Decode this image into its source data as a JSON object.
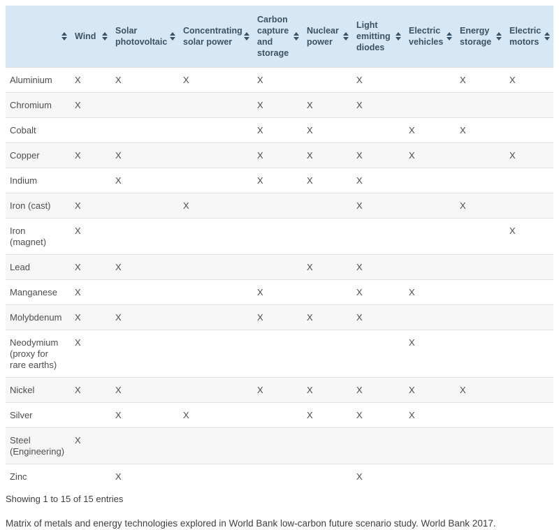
{
  "table": {
    "columns": [
      {
        "id": "metal",
        "label": "",
        "sortable": true
      },
      {
        "id": "wind",
        "label": "Wind",
        "sortable": true
      },
      {
        "id": "solar-photovoltaic",
        "label": "Solar photovoltaic",
        "sortable": true
      },
      {
        "id": "concentrating-solar-power",
        "label": "Concentrating solar power",
        "sortable": true
      },
      {
        "id": "carbon-capture-and-storage",
        "label": "Carbon capture and storage",
        "sortable": true
      },
      {
        "id": "nuclear-power",
        "label": "Nuclear power",
        "sortable": true
      },
      {
        "id": "light-emitting-diodes",
        "label": "Light emitting diodes",
        "sortable": true
      },
      {
        "id": "electric-vehicles",
        "label": "Electric vehicles",
        "sortable": true
      },
      {
        "id": "energy-storage",
        "label": "Energy storage",
        "sortable": true
      },
      {
        "id": "electric-motors",
        "label": "Electric motors",
        "sortable": true
      }
    ],
    "mark_char": "X",
    "rows": [
      {
        "metal": "Aluminium",
        "marks": [
          "X",
          "X",
          "X",
          "X",
          "",
          "X",
          "",
          "X",
          "X"
        ]
      },
      {
        "metal": "Chromium",
        "marks": [
          "X",
          "",
          "",
          "X",
          "X",
          "X",
          "",
          "",
          ""
        ]
      },
      {
        "metal": "Cobalt",
        "marks": [
          "",
          "",
          "",
          "X",
          "X",
          "",
          "X",
          "X",
          ""
        ]
      },
      {
        "metal": "Copper",
        "marks": [
          "X",
          "X",
          "",
          "X",
          "X",
          "X",
          "X",
          "",
          "X"
        ]
      },
      {
        "metal": "Indium",
        "marks": [
          "",
          "X",
          "",
          "X",
          "X",
          "X",
          "",
          "",
          ""
        ]
      },
      {
        "metal": "Iron (cast)",
        "marks": [
          "X",
          "",
          "X",
          "",
          "",
          "X",
          "",
          "X",
          ""
        ]
      },
      {
        "metal": "Iron (magnet)",
        "marks": [
          "X",
          "",
          "",
          "",
          "",
          "",
          "",
          "",
          "X"
        ]
      },
      {
        "metal": "Lead",
        "marks": [
          "X",
          "X",
          "",
          "",
          "X",
          "X",
          "",
          "",
          ""
        ]
      },
      {
        "metal": "Manganese",
        "marks": [
          "X",
          "",
          "",
          "X",
          "",
          "X",
          "X",
          "",
          ""
        ]
      },
      {
        "metal": "Molybdenum",
        "marks": [
          "X",
          "X",
          "",
          "X",
          "X",
          "X",
          "",
          "",
          ""
        ]
      },
      {
        "metal": "Neodymium (proxy for rare earths)",
        "marks": [
          "X",
          "",
          "",
          "",
          "",
          "",
          "X",
          "",
          ""
        ]
      },
      {
        "metal": "Nickel",
        "marks": [
          "X",
          "X",
          "",
          "X",
          "X",
          "X",
          "X",
          "X",
          ""
        ]
      },
      {
        "metal": "Silver",
        "marks": [
          "",
          "X",
          "X",
          "",
          "X",
          "X",
          "X",
          "",
          ""
        ]
      },
      {
        "metal": "Steel (Engineering)",
        "marks": [
          "X",
          "",
          "",
          "",
          "",
          "",
          "",
          "",
          ""
        ]
      },
      {
        "metal": "Zinc",
        "marks": [
          "",
          "X",
          "",
          "",
          "",
          "X",
          "",
          "",
          ""
        ]
      }
    ]
  },
  "footer": {
    "showing_text": "Showing 1 to 15 of 15 entries",
    "caption": "Matrix of metals and energy technologies explored in World Bank low-carbon future scenario study. World Bank 2017."
  },
  "colors": {
    "header_bg": "#d6e8f5",
    "header_text": "#3a5265",
    "row_stripe": "#f7f7f7",
    "body_text": "#4e4e4e"
  }
}
